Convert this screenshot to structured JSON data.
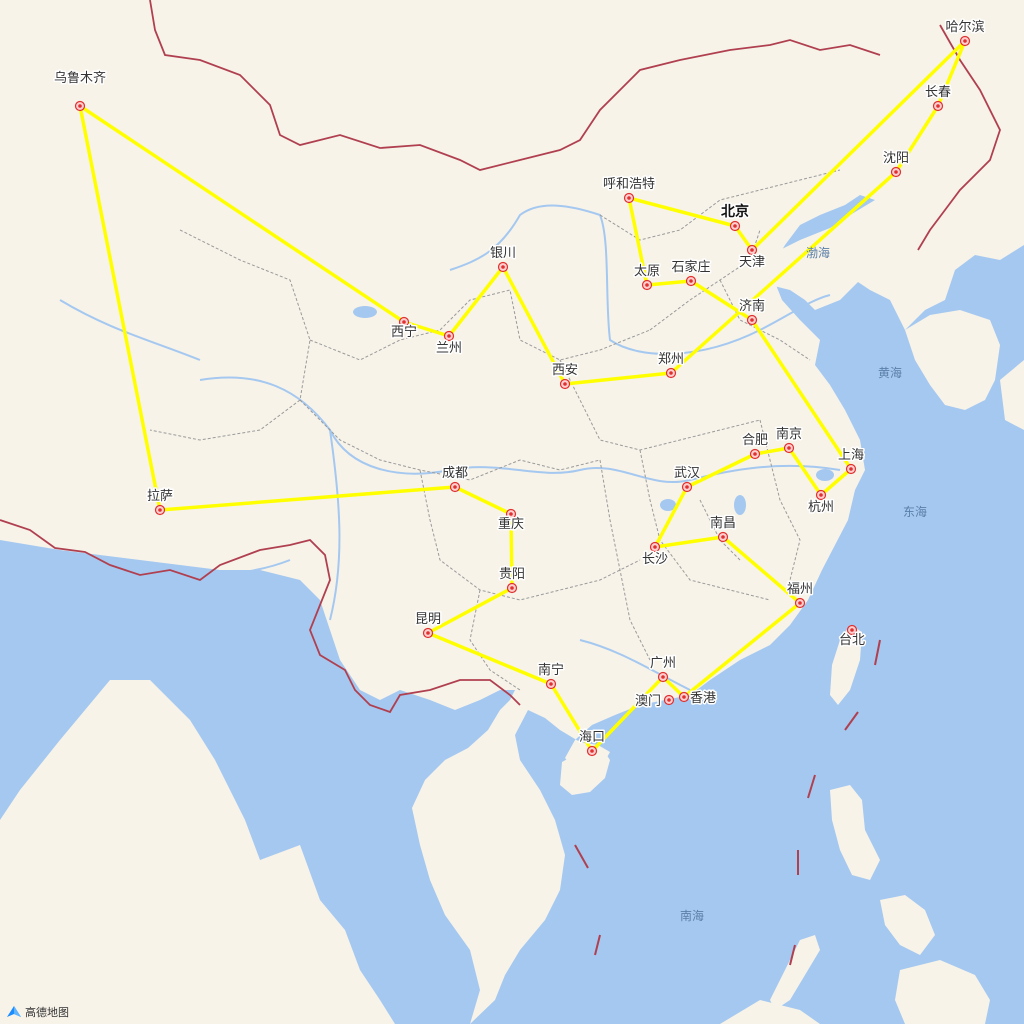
{
  "map": {
    "route_color": "#ffff00",
    "land_color": "#f7f3e9",
    "water_color": "#a5c8f0",
    "border_color": "#b04050",
    "province_color": "#9a9a9a",
    "river_color": "#a5c8f0"
  },
  "cities": [
    {
      "id": "urumqi",
      "name": "乌鲁木齐"
    },
    {
      "id": "lhasa",
      "name": "拉萨"
    },
    {
      "id": "chengdu",
      "name": "成都"
    },
    {
      "id": "chongqing",
      "name": "重庆"
    },
    {
      "id": "guiyang",
      "name": "贵阳"
    },
    {
      "id": "kunming",
      "name": "昆明"
    },
    {
      "id": "nanning",
      "name": "南宁"
    },
    {
      "id": "haikou",
      "name": "海口"
    },
    {
      "id": "guangzhou",
      "name": "广州"
    },
    {
      "id": "macau",
      "name": "澳门"
    },
    {
      "id": "hongkong",
      "name": "香港"
    },
    {
      "id": "fuzhou",
      "name": "福州"
    },
    {
      "id": "nanchang",
      "name": "南昌"
    },
    {
      "id": "changsha",
      "name": "长沙"
    },
    {
      "id": "wuhan",
      "name": "武汉"
    },
    {
      "id": "hefei",
      "name": "合肥"
    },
    {
      "id": "nanjing",
      "name": "南京"
    },
    {
      "id": "shanghai",
      "name": "上海"
    },
    {
      "id": "hangzhou",
      "name": "杭州"
    },
    {
      "id": "jinan",
      "name": "济南"
    },
    {
      "id": "shijiazhuang",
      "name": "石家庄"
    },
    {
      "id": "taiyuan",
      "name": "太原"
    },
    {
      "id": "hohhot",
      "name": "呼和浩特"
    },
    {
      "id": "beijing",
      "name": "北京"
    },
    {
      "id": "tianjin",
      "name": "天津"
    },
    {
      "id": "harbin",
      "name": "哈尔滨"
    },
    {
      "id": "changchun",
      "name": "长春"
    },
    {
      "id": "shenyang",
      "name": "沈阳"
    },
    {
      "id": "zhengzhou",
      "name": "郑州"
    },
    {
      "id": "xian",
      "name": "西安"
    },
    {
      "id": "yinchuan",
      "name": "银川"
    },
    {
      "id": "lanzhou",
      "name": "兰州"
    },
    {
      "id": "xining",
      "name": "西宁"
    },
    {
      "id": "taipei",
      "name": "台北"
    }
  ],
  "route": [
    "urumqi",
    "lhasa",
    "chengdu",
    "chongqing",
    "guiyang",
    "kunming",
    "nanning",
    "haikou",
    "guangzhou",
    "hongkong",
    "fuzhou",
    "nanchang",
    "changsha",
    "wuhan",
    "hefei",
    "nanjing",
    "hangzhou",
    "shanghai",
    "jinan",
    "shijiazhuang",
    "taiyuan",
    "hohhot",
    "beijing",
    "tianjin",
    "harbin",
    "changchun",
    "shenyang",
    "zhengzhou",
    "xian",
    "yinchuan",
    "lanzhou",
    "xining",
    "urumqi"
  ],
  "seas": [
    {
      "id": "bohai",
      "name": "渤海"
    },
    {
      "id": "huanghai",
      "name": "黄海"
    },
    {
      "id": "donghai",
      "name": "东海"
    },
    {
      "id": "nanhai",
      "name": "南海"
    }
  ],
  "attribution": {
    "text": "高德地图",
    "icon": "amap-logo-icon"
  }
}
